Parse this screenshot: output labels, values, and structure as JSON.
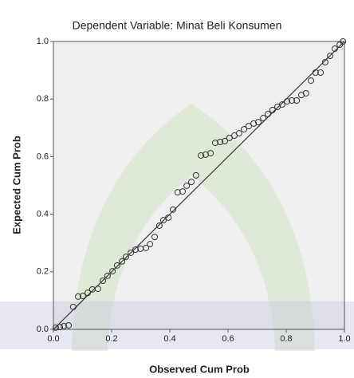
{
  "chart_data": {
    "type": "scatter",
    "title": "Dependent Variable: Minat Beli Konsumen",
    "xlabel": "Observed Cum Prob",
    "ylabel": "Expected Cum Prob",
    "color": "#333333",
    "x": [
      0.008,
      0.022,
      0.036,
      0.052,
      0.068,
      0.085,
      0.101,
      0.118,
      0.134,
      0.153,
      0.17,
      0.186,
      0.203,
      0.219,
      0.236,
      0.249,
      0.266,
      0.282,
      0.299,
      0.318,
      0.332,
      0.348,
      0.364,
      0.378,
      0.395,
      0.411,
      0.427,
      0.444,
      0.458,
      0.474,
      0.49,
      0.507,
      0.523,
      0.54,
      0.556,
      0.573,
      0.589,
      0.605,
      0.622,
      0.638,
      0.655,
      0.671,
      0.688,
      0.704,
      0.721,
      0.737,
      0.753,
      0.77,
      0.786,
      0.803,
      0.819,
      0.836,
      0.852,
      0.868,
      0.885,
      0.901,
      0.918,
      0.934,
      0.951,
      0.967,
      0.984,
      0.995
    ],
    "values": [
      0.006,
      0.008,
      0.011,
      0.014,
      0.078,
      0.114,
      0.116,
      0.127,
      0.139,
      0.141,
      0.169,
      0.186,
      0.202,
      0.222,
      0.236,
      0.252,
      0.266,
      0.277,
      0.28,
      0.283,
      0.296,
      0.321,
      0.36,
      0.379,
      0.388,
      0.416,
      0.476,
      0.479,
      0.499,
      0.512,
      0.535,
      0.604,
      0.607,
      0.612,
      0.648,
      0.651,
      0.654,
      0.665,
      0.673,
      0.681,
      0.695,
      0.706,
      0.715,
      0.72,
      0.734,
      0.748,
      0.762,
      0.773,
      0.781,
      0.792,
      0.795,
      0.795,
      0.814,
      0.82,
      0.864,
      0.892,
      0.892,
      0.928,
      0.95,
      0.975,
      0.989,
      1.0
    ],
    "xlim": [
      0,
      1
    ],
    "ylim": [
      0,
      1
    ],
    "xticks": [
      {
        "value": 0,
        "label": "0.0"
      },
      0.2,
      0.4,
      0.6,
      0.8,
      {
        "value": 1,
        "label": "1.0"
      }
    ],
    "yticks": [
      {
        "value": 0,
        "label": "0.0"
      },
      0.2,
      0.4,
      0.6,
      0.8,
      {
        "value": 1,
        "label": "1.0"
      }
    ]
  }
}
